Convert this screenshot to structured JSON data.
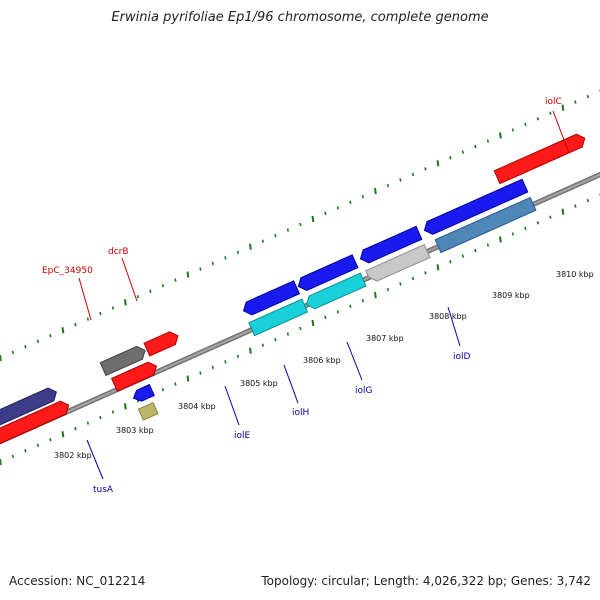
{
  "title": "Erwinia pyrifoliae Ep1/96 chromosome, complete genome",
  "footer": {
    "accession": "Accession: NC_012214",
    "topology": "Topology: circular; Length: 4,026,322 bp; Genes: 3,742"
  },
  "colors": {
    "background": "#ffffff",
    "backbone": "#8c8c8c",
    "tick": "#1a7a1a",
    "label_forward": "#cc0000",
    "label_reverse": "#0000aa",
    "gene_red": "#ff1a1a",
    "gene_blue": "#1a1aee",
    "gene_cyan": "#1ad0d8",
    "gene_grey": "#c8c8c8",
    "gene_steel": "#4f86b8",
    "gene_navy": "#3d3c88",
    "gene_darkgrey": "#6e6e6e",
    "gene_khaki": "#bdb56a"
  },
  "kbp_labels": [
    "3802 kbp",
    "3803 kbp",
    "3804 kbp",
    "3805 kbp",
    "3806 kbp",
    "3807 kbp",
    "3808 kbp",
    "3809 kbp",
    "3810 kbp"
  ],
  "gene_labels_forward": [
    "iolC",
    "dcrB",
    "EpC_34950"
  ],
  "gene_labels_reverse": [
    "tusA",
    "iolE",
    "iolH",
    "iolG",
    "iolD"
  ]
}
